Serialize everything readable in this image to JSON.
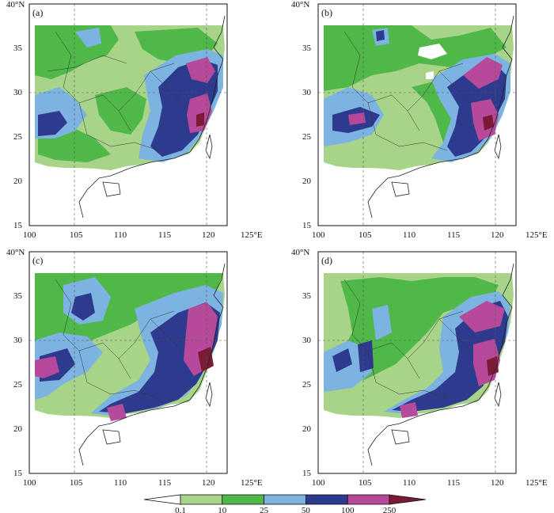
{
  "figure": {
    "panels": [
      {
        "id": "a",
        "label": "(a)"
      },
      {
        "id": "b",
        "label": "(b)"
      },
      {
        "id": "c",
        "label": "(c)"
      },
      {
        "id": "d",
        "label": "(d)"
      }
    ],
    "x_ticks": [
      "100",
      "105",
      "110",
      "115",
      "120",
      "125°E"
    ],
    "y_ticks": [
      "15",
      "20",
      "25",
      "30",
      "35",
      "40°N"
    ],
    "colorbar": {
      "labels": [
        "0.1",
        "10",
        "25",
        "50",
        "100",
        "250"
      ],
      "colors": [
        "#ffffff",
        "#a8d48a",
        "#4fb848",
        "#7cb3e0",
        "#2e3a8e",
        "#b6499a",
        "#7a1a35"
      ]
    }
  },
  "colors": {
    "land_boundary": "#222222",
    "grid": "#555555",
    "light_green": "#a8d48a",
    "green": "#4fb848",
    "light_blue": "#7cb3e0",
    "navy": "#2e3a8e",
    "magenta": "#b6499a",
    "maroon": "#7a1a35"
  }
}
